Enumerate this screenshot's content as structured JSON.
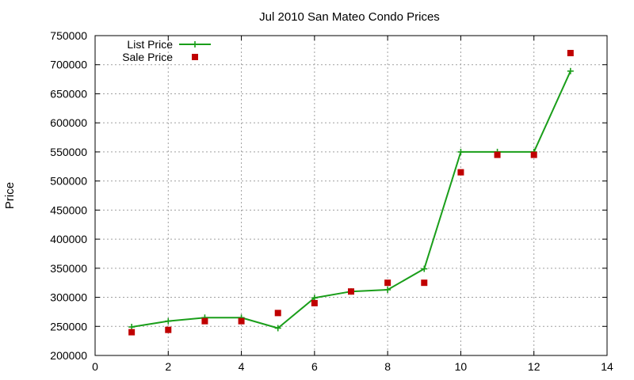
{
  "chart_data": {
    "type": "line",
    "title": "Jul 2010 San Mateo Condo Prices",
    "xlabel": "",
    "ylabel": "Price",
    "xlim": [
      0,
      14
    ],
    "ylim": [
      200000,
      750000
    ],
    "x_ticks": [
      0,
      2,
      4,
      6,
      8,
      10,
      12,
      14
    ],
    "y_ticks": [
      200000,
      250000,
      300000,
      350000,
      400000,
      450000,
      500000,
      550000,
      600000,
      650000,
      700000,
      750000
    ],
    "x_tick_labels": [
      "0",
      "2",
      "4",
      "6",
      "8",
      "10",
      "12",
      "14"
    ],
    "y_tick_labels": [
      "200000",
      "250000",
      "300000",
      "350000",
      "400000",
      "450000",
      "500000",
      "550000",
      "600000",
      "650000",
      "700000",
      "750000"
    ],
    "grid": true,
    "legend_position": "top-left",
    "series": [
      {
        "name": "List Price",
        "style": "line-plus",
        "color": "#1a9e1a",
        "x": [
          1,
          2,
          3,
          4,
          5,
          6,
          7,
          8,
          9,
          10,
          11,
          12,
          13
        ],
        "values": [
          249000,
          259000,
          265000,
          265000,
          247000,
          299000,
          310000,
          313000,
          349000,
          550000,
          550000,
          550000,
          689000
        ]
      },
      {
        "name": "Sale Price",
        "style": "square-markers",
        "color": "#c00000",
        "x": [
          1,
          2,
          3,
          4,
          5,
          6,
          7,
          8,
          9,
          10,
          11,
          12,
          13
        ],
        "values": [
          240000,
          244000,
          259000,
          259000,
          273000,
          290000,
          310000,
          325000,
          325000,
          515000,
          545000,
          545000,
          720000
        ]
      }
    ]
  }
}
